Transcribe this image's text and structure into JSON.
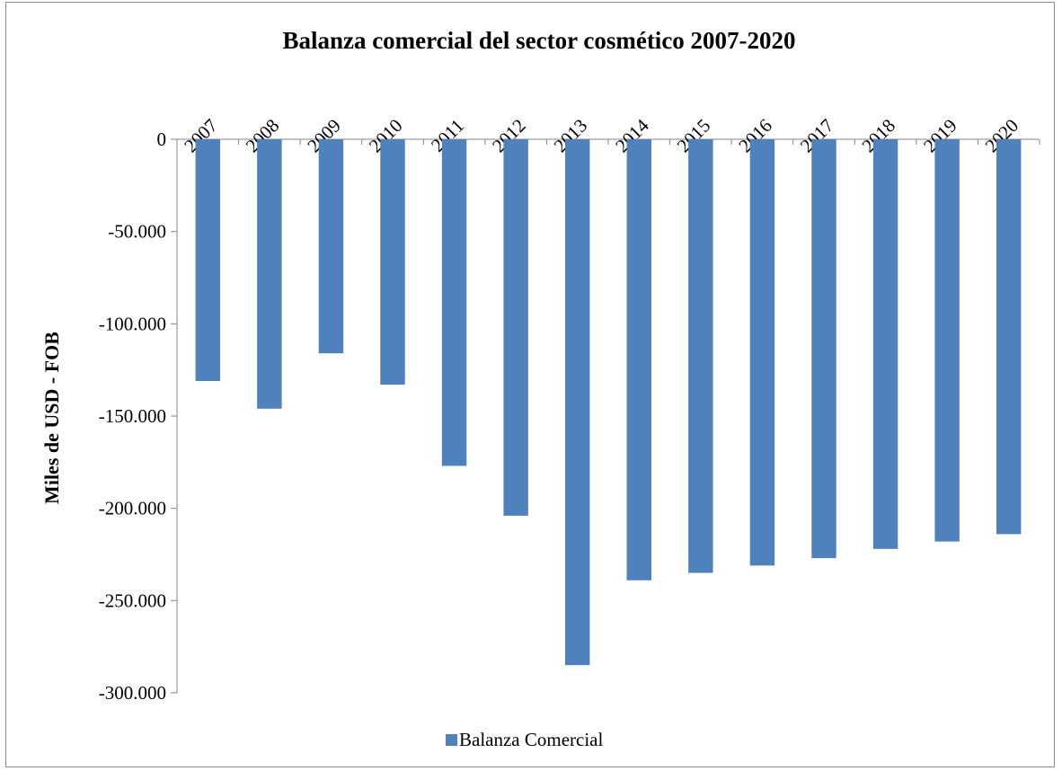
{
  "chart_data": {
    "type": "bar",
    "title": "Balanza comercial del sector cosmético 2007-2020",
    "ylabel": "Miles de USD - FOB",
    "xlabel": "",
    "categories": [
      "2007",
      "2008",
      "2009",
      "2010",
      "2011",
      "2012",
      "2013",
      "2014",
      "2015",
      "2016",
      "2017",
      "2018",
      "2019",
      "2020"
    ],
    "series": [
      {
        "name": "Balanza Comercial",
        "color": "#4f81bd",
        "values": [
          -131000,
          -146000,
          -116000,
          -133000,
          -177000,
          -204000,
          -285000,
          -239000,
          -235000,
          -231000,
          -227000,
          -222000,
          -218000,
          -214000
        ]
      }
    ],
    "ylim": [
      -300000,
      0
    ],
    "yticks": [
      0,
      -50000,
      -100000,
      -150000,
      -200000,
      -250000,
      -300000
    ],
    "ytick_labels": [
      "0",
      "-50.000",
      "-100.000",
      "-150.000",
      "-200.000",
      "-250.000",
      "-300.000"
    ],
    "x_axis_position": "top",
    "x_tick_rotation": "-45",
    "grid": false,
    "legend_position": "bottom"
  }
}
